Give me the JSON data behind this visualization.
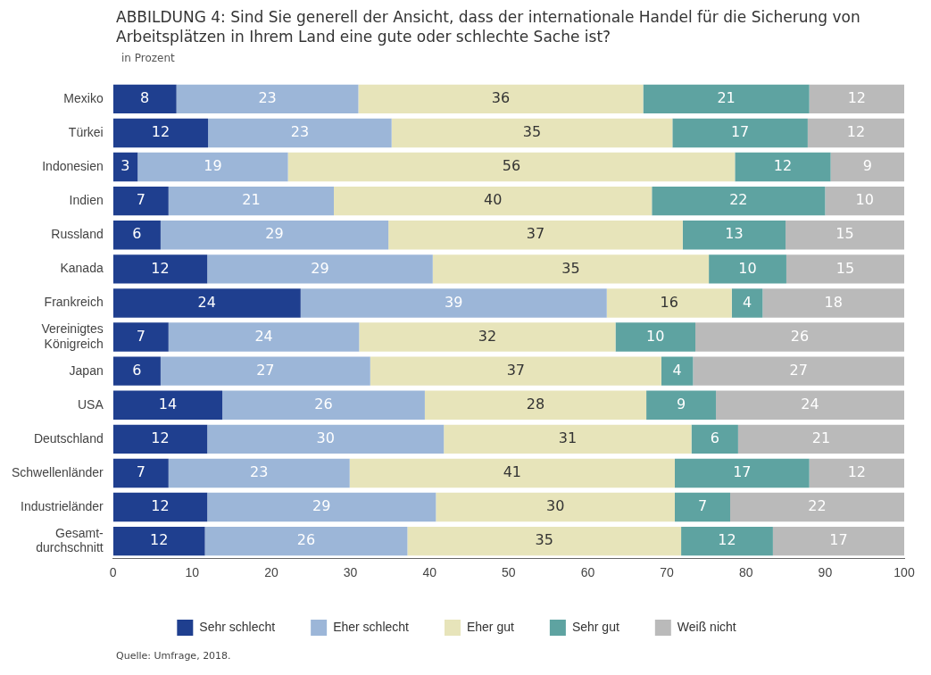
{
  "chart_data": {
    "type": "bar",
    "orientation": "horizontal",
    "stacked": true,
    "title": "ABBILDUNG 4: Sind Sie generell der Ansicht, dass der internationale Handel für die Sicherung von Arbeitsplätzen in Ihrem Land eine gute oder schlechte Sache ist?",
    "subtitle": "in Prozent",
    "categories": [
      "Mexiko",
      "Türkei",
      "Indonesien",
      "Indien",
      "Russland",
      "Kanada",
      "Frankreich",
      "Vereinigtes Königreich",
      "Japan",
      "USA",
      "Deutschland",
      "Schwellenländer",
      "Industrieländer",
      "Gesamt-durchschnitt"
    ],
    "series": [
      {
        "name": "Sehr schlecht",
        "color": "#1f3f8f",
        "values": [
          8,
          12,
          3.1,
          7,
          6,
          11.9,
          23.7,
          7,
          6,
          13.8,
          11.9,
          7,
          11.9,
          11.6
        ],
        "value_labels": [
          "8",
          "12",
          "3",
          "7",
          "6",
          "12",
          "24",
          "7",
          "6",
          "14",
          "12",
          "7",
          "12",
          "12"
        ]
      },
      {
        "name": "Eher schlecht",
        "color": "#9cb6d8",
        "values": [
          23,
          23.2,
          19,
          20.9,
          28.8,
          28.5,
          38.7,
          24.1,
          26.5,
          25.6,
          29.9,
          22.9,
          28.9,
          25.6
        ],
        "value_labels": [
          "23",
          "23",
          "19",
          "21",
          "29",
          "29",
          "39",
          "24",
          "27",
          "26",
          "30",
          "23",
          "29",
          "26"
        ]
      },
      {
        "name": "Eher gut",
        "color": "#e7e4ba",
        "values": [
          36,
          35.5,
          56.5,
          40.2,
          37.2,
          34.9,
          15.8,
          32.4,
          36.8,
          28,
          31.3,
          41.1,
          30.2,
          34.6
        ],
        "value_labels": [
          "36",
          "35",
          "56",
          "40",
          "37",
          "35",
          "16",
          "32",
          "37",
          "28",
          "31",
          "41",
          "30",
          "35"
        ]
      },
      {
        "name": "Sehr gut",
        "color": "#5ea3a1",
        "values": [
          21,
          17.1,
          12.1,
          21.9,
          13,
          9.8,
          3.9,
          10.1,
          4,
          8.8,
          5.9,
          17,
          7,
          11.6
        ],
        "value_labels": [
          "21",
          "17",
          "12",
          "22",
          "13",
          "10",
          "4",
          "10",
          "4",
          "9",
          "6",
          "17",
          "7",
          "12"
        ]
      },
      {
        "name": "Weiß nicht",
        "color": "#bababa",
        "values": [
          12,
          12.2,
          9.3,
          10,
          15,
          14.9,
          17.9,
          26.4,
          26.7,
          23.8,
          21,
          12,
          22,
          16.6
        ],
        "value_labels": [
          "12",
          "12",
          "9",
          "10",
          "15",
          "15",
          "18",
          "26",
          "27",
          "24",
          "21",
          "12",
          "22",
          "17"
        ]
      }
    ],
    "xlim": [
      0,
      100
    ],
    "xticks": [
      0,
      10,
      20,
      30,
      40,
      50,
      60,
      70,
      80,
      90,
      100
    ],
    "grid": false,
    "legend": "bottom",
    "annotations": [
      "Quelle: Umfrage, 2018."
    ]
  }
}
